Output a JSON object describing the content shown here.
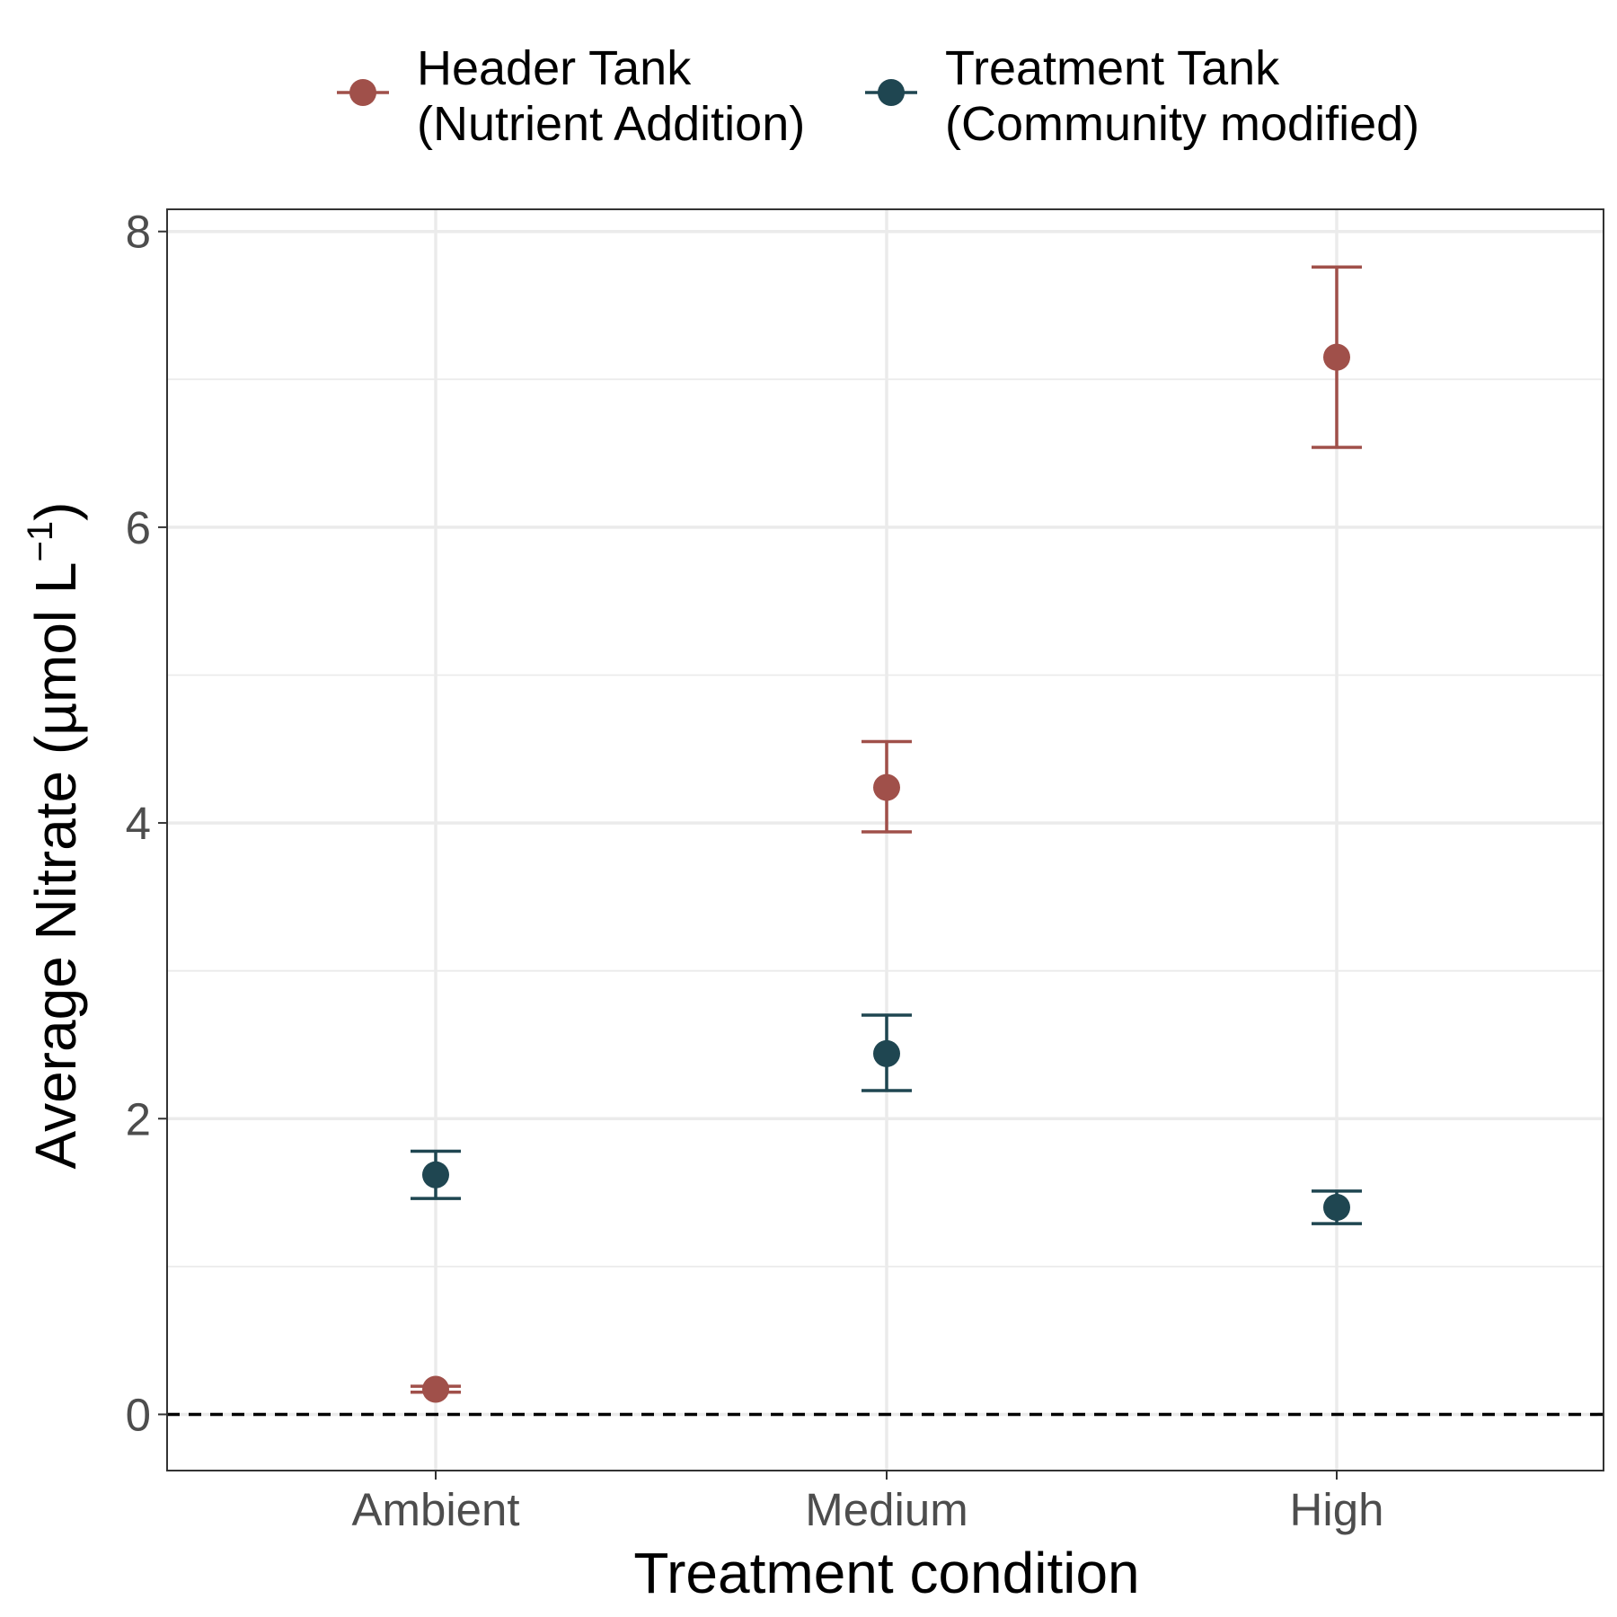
{
  "chart_data": {
    "type": "scatter",
    "xlabel": "Treatment condition",
    "ylabel_main": "Average Nitrate (µmol L",
    "ylabel_sup": "−1",
    "ylabel_close": ")",
    "categories": [
      "Ambient",
      "Medium",
      "High"
    ],
    "yticks": [
      "0",
      "2",
      "4",
      "6",
      "8"
    ],
    "ylim": [
      -0.38,
      8.15
    ],
    "grid": true,
    "reference_line": {
      "y": 0,
      "style": "dashed"
    },
    "legend_position": "top",
    "series": [
      {
        "name_line1": "Header Tank",
        "name_line2": "(Nutrient Addition)",
        "color": "#A0504A",
        "points": [
          {
            "category": "Ambient",
            "y": 0.17,
            "lower": 0.15,
            "upper": 0.19
          },
          {
            "category": "Medium",
            "y": 4.24,
            "lower": 3.94,
            "upper": 4.55
          },
          {
            "category": "High",
            "y": 7.15,
            "lower": 6.54,
            "upper": 7.76
          }
        ]
      },
      {
        "name_line1": "Treatment Tank",
        "name_line2": "(Community modified)",
        "color": "#1F4651",
        "points": [
          {
            "category": "Ambient",
            "y": 1.62,
            "lower": 1.46,
            "upper": 1.78
          },
          {
            "category": "Medium",
            "y": 2.44,
            "lower": 2.19,
            "upper": 2.7
          },
          {
            "category": "High",
            "y": 1.4,
            "lower": 1.29,
            "upper": 1.51
          }
        ]
      }
    ]
  }
}
